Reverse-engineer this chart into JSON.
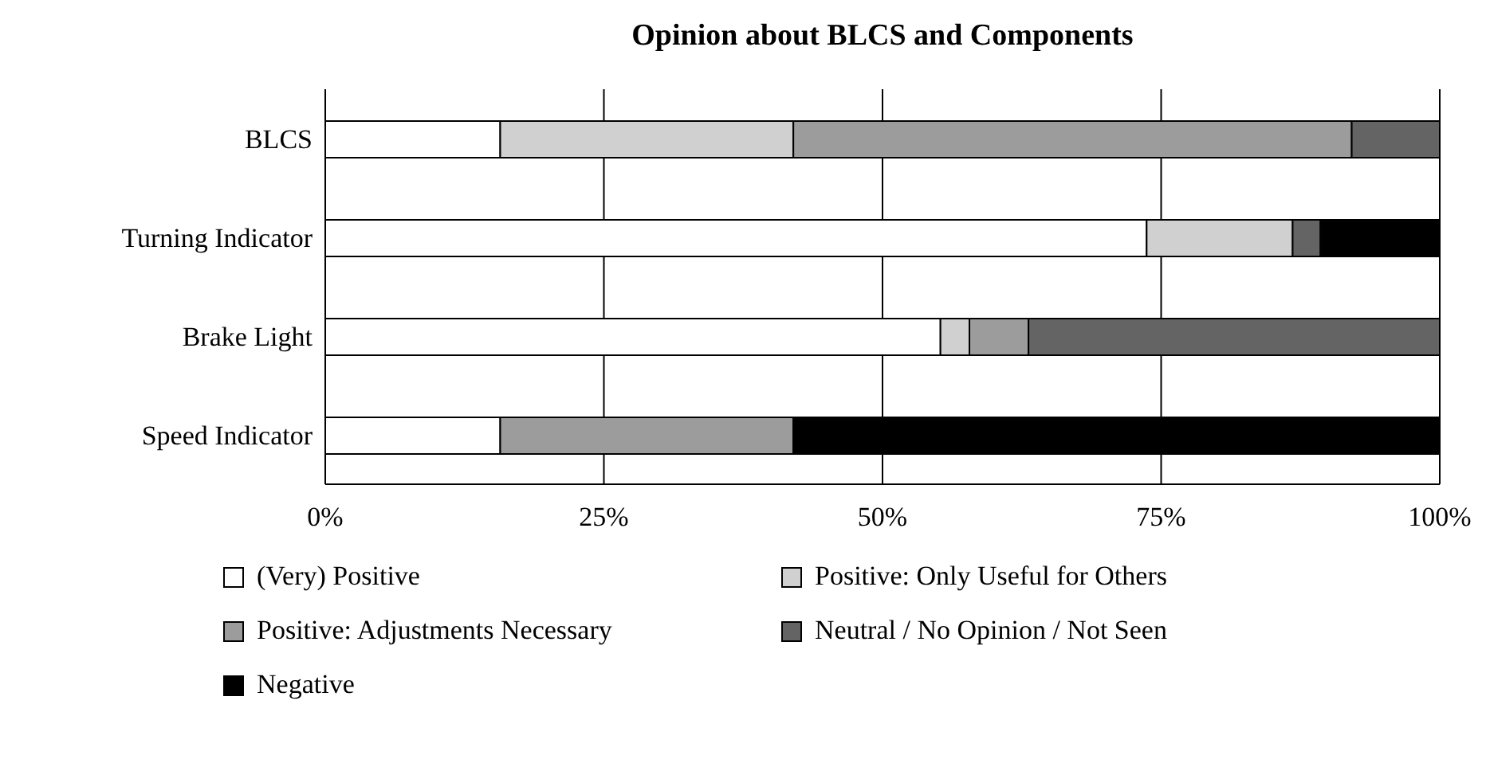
{
  "chart_data": {
    "type": "bar",
    "orientation": "horizontal",
    "stacked": true,
    "title": "Opinion about BLCS and Components",
    "categories": [
      "BLCS",
      "Turning Indicator",
      "Brake Light",
      "Speed Indicator"
    ],
    "series": [
      {
        "name": "(Very) Positive",
        "color": "#ffffff",
        "values": [
          15.7,
          73.7,
          55.2,
          15.7
        ]
      },
      {
        "name": "Positive: Only Useful for Others",
        "color": "#d0d0d0",
        "values": [
          26.3,
          13.1,
          2.6,
          0
        ]
      },
      {
        "name": "Positive: Adjustments Necessary",
        "color": "#9c9c9c",
        "values": [
          50.1,
          0,
          5.3,
          26.3
        ]
      },
      {
        "name": "Neutral / No Opinion / Not Seen",
        "color": "#646464",
        "values": [
          7.9,
          2.5,
          36.9,
          0
        ]
      },
      {
        "name": "Negative",
        "color": "#000000",
        "values": [
          0,
          10.7,
          0,
          58.0
        ]
      }
    ],
    "xlim": [
      0,
      100
    ],
    "xticks": [
      {
        "value": 0,
        "label": "0%"
      },
      {
        "value": 25,
        "label": "25%"
      },
      {
        "value": 50,
        "label": "50%"
      },
      {
        "value": 75,
        "label": "75%"
      },
      {
        "value": 100,
        "label": "100%"
      }
    ],
    "grid": "x",
    "legend": "bottom"
  }
}
